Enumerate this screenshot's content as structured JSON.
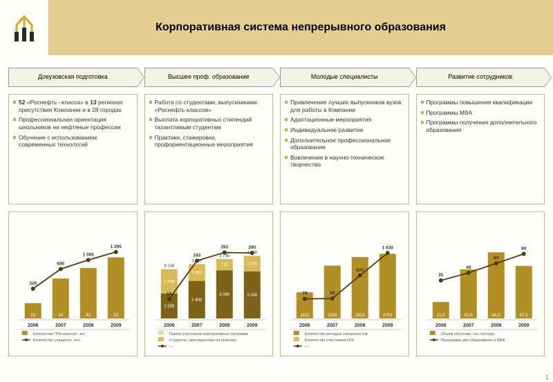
{
  "title": "Корпоративная система непрерывного образования",
  "page_number": "1",
  "colors": {
    "header_bg": "#e3cd91",
    "tab_bg": "#f5f2e8",
    "border": "#c9b97e",
    "bar_dark": "#7c6416",
    "bar_mid": "#b28f24",
    "bar_light": "#d9bb55",
    "bar_very_light": "#e9d99b",
    "line_dark": "#4d3c07",
    "text_dark": "#333333"
  },
  "columns": [
    {
      "tab": "Довузовская подготовка",
      "bullets": [
        "<b>52</b> «Роснефть –класса» в <b>13</b> регионах присутствия Компании и в 28 городах",
        "Профессиональная ориентация школьников на нефтяные профессии",
        "Обучение с использованием современных технологий"
      ],
      "chart": {
        "type": "bar+line",
        "years": [
          "2006",
          "2007",
          "2008",
          "2009"
        ],
        "bars": [
          {
            "label": "Количество \"РН-классов\", шт.",
            "color": "#b28f24",
            "values": [
              13,
              34,
              43,
              52
            ],
            "labels": [
              "13",
              "34",
              "43",
              "52"
            ]
          }
        ],
        "bar_ymax": 60,
        "line": {
          "label": "Количество учащихся, чел.",
          "color": "#4d3c07",
          "values": [
            328,
            846,
            1085,
            1295
          ],
          "labels": [
            "328",
            "846",
            "1 085",
            "1 295"
          ],
          "ymax": 1400
        }
      }
    },
    {
      "tab": "Высшее проф. образование",
      "bullets": [
        "Работа со студентами, выпускниками «Роснефть-классов»",
        "Выплата корпоративных стипендий талантливым студентам",
        "Практики, стажировки, профориентационные мероприятия"
      ],
      "chart": {
        "type": "stacked+line",
        "years": [
          "2006",
          "2007",
          "2008",
          "2009"
        ],
        "stacks": [
          {
            "label": "—",
            "color": "#7c6416",
            "values": [
              1595,
              2400,
              3080,
              3000
            ],
            "labels": [
              "1 595",
              "2 400",
              "3 080",
              "3 000"
            ]
          },
          {
            "label": "Студенты, приглашенные на практику",
            "color": "#d9bb55",
            "values": [
              1549,
              1067,
              715,
              1000
            ],
            "labels": [
              "1 549",
              "1 067",
              "715",
              "1 000"
            ]
          }
        ],
        "totals": [
          "3 144",
          "3 467",
          "3 795",
          "4 000"
        ],
        "bar_ymax": 4500,
        "extra_legend": "Прием участников корпоративных программ",
        "line": {
          "label": "—",
          "color": "#4d3c07",
          "values": [
            13,
            243,
            293,
            290
          ],
          "labels": [
            "13",
            "243",
            "293",
            "290"
          ],
          "ymax": 320
        }
      }
    },
    {
      "tab": "Молодые специалисты",
      "bullets": [
        "Привлечение лучших выпускников вузов для работы в Компании",
        "Адаптационные мероприятия",
        "Индивидуальное развитие",
        "Дополнительное профессиональное образование",
        "Вовлечение в научно-техническое творчество"
      ],
      "chart": {
        "type": "bar+line",
        "years": [
          "2006",
          "2007",
          "2008",
          "2009"
        ],
        "bars": [
          {
            "label": "Количество молодых специалистов",
            "color": "#b28f24",
            "values": [
              1113,
              2250,
              2613,
              2753
            ],
            "labels": [
              "1113",
              "2250",
              "2613",
              "2753"
            ]
          }
        ],
        "bar_ymax": 3000,
        "extra_legend": "Количество участников НТК",
        "line": {
          "label": "—",
          "color": "#4d3c07",
          "values": [
            79,
            89,
            870,
            1630
          ],
          "labels": [
            "79",
            "89",
            "870",
            "1 630"
          ],
          "ymax": 1800
        }
      }
    },
    {
      "tab": "Развитие сотрудников",
      "bullets": [
        "Программы повышения квалификации",
        "Программы MBA",
        "Программы получения дополнительного образования"
      ],
      "chart": {
        "type": "bar+line",
        "years": [
          "2006",
          "2007",
          "2008",
          "2009"
        ],
        "bars": [
          {
            "label": "Объем обучения, тыс.чел.курс",
            "color": "#b28f24",
            "values": [
              21.0,
              62.6,
              84.5,
              67.1
            ],
            "labels": [
              "21,0",
              "62,6",
              "84,5",
              "67,1"
            ]
          }
        ],
        "bar_ymax": 90,
        "line": {
          "label": "Программы доп.образования и MBA",
          "color": "#4d3c07",
          "values": [
            35,
            48,
            64,
            80
          ],
          "labels": [
            "35",
            "48",
            "64",
            "80"
          ],
          "ymax": 90
        }
      }
    }
  ]
}
